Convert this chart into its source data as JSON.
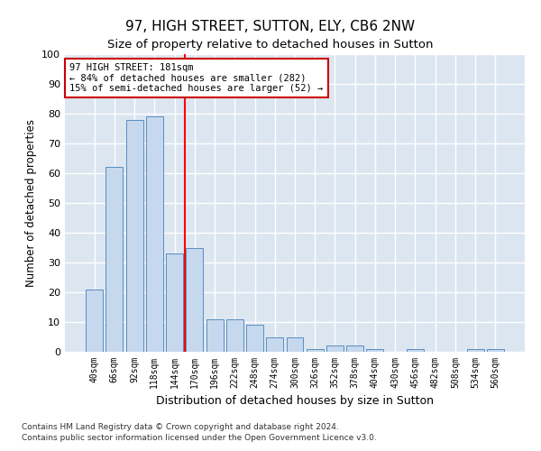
{
  "title": "97, HIGH STREET, SUTTON, ELY, CB6 2NW",
  "subtitle": "Size of property relative to detached houses in Sutton",
  "xlabel": "Distribution of detached houses by size in Sutton",
  "ylabel": "Number of detached properties",
  "categories": [
    "40sqm",
    "66sqm",
    "92sqm",
    "118sqm",
    "144sqm",
    "170sqm",
    "196sqm",
    "222sqm",
    "248sqm",
    "274sqm",
    "300sqm",
    "326sqm",
    "352sqm",
    "378sqm",
    "404sqm",
    "430sqm",
    "456sqm",
    "482sqm",
    "508sqm",
    "534sqm",
    "560sqm"
  ],
  "values": [
    21,
    62,
    78,
    79,
    33,
    35,
    11,
    11,
    9,
    5,
    5,
    1,
    2,
    2,
    1,
    0,
    1,
    0,
    0,
    1,
    1
  ],
  "bar_color": "#c5d8ed",
  "bar_edgecolor": "#5b8dc0",
  "bg_color": "#dce6f1",
  "grid_color": "#ffffff",
  "redline_x": 4.5,
  "annotation_text": "97 HIGH STREET: 181sqm\n← 84% of detached houses are smaller (282)\n15% of semi-detached houses are larger (52) →",
  "annotation_box_facecolor": "#ffffff",
  "annotation_box_edgecolor": "#cc0000",
  "ylim": [
    0,
    100
  ],
  "yticks": [
    0,
    10,
    20,
    30,
    40,
    50,
    60,
    70,
    80,
    90,
    100
  ],
  "footer1": "Contains HM Land Registry data © Crown copyright and database right 2024.",
  "footer2": "Contains public sector information licensed under the Open Government Licence v3.0.",
  "title_fontsize": 11,
  "subtitle_fontsize": 9.5
}
